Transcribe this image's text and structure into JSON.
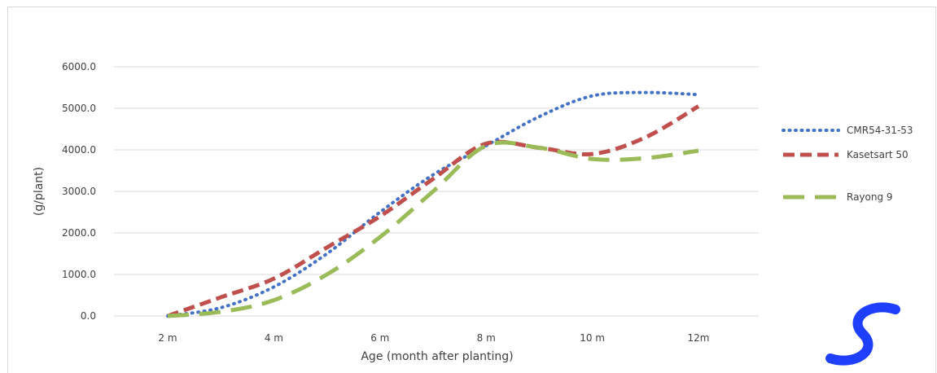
{
  "chart_data": {
    "type": "line",
    "categories": [
      "2 m",
      "4 m",
      "6 m",
      "8 m",
      "10 m",
      "12m"
    ],
    "x": [
      2,
      3,
      4,
      5,
      6,
      7,
      8,
      9,
      10,
      11,
      12
    ],
    "ylabel": "(g/plant)",
    "xlabel": "Age (month after planting)",
    "ylim": [
      0,
      6000
    ],
    "yticks": [
      "0.0",
      "1000.0",
      "2000.0",
      "3000.0",
      "4000.0",
      "5000.0",
      "6000.0"
    ],
    "ytick_values": [
      0,
      1000,
      2000,
      3000,
      4000,
      5000,
      6000
    ],
    "grid": true,
    "legend_position": "right",
    "series": [
      {
        "name": "CMR54-31-53",
        "color": "#4472c4",
        "dash": "dotted",
        "values": [
          0,
          200,
          700,
          1500,
          2500,
          3400,
          4100,
          4800,
          5300,
          5380,
          5330
        ]
      },
      {
        "name": "Kasetsart 50",
        "color": "#c0504d",
        "dash": "dashed",
        "values": [
          0,
          450,
          900,
          1650,
          2400,
          3300,
          4150,
          4050,
          3900,
          4300,
          5050
        ]
      },
      {
        "name": "Rayong 9",
        "color": "#9bbb59",
        "dash": "longdash",
        "values": [
          0,
          100,
          380,
          1000,
          1900,
          3000,
          4100,
          4050,
          3780,
          3800,
          3980
        ]
      }
    ]
  }
}
